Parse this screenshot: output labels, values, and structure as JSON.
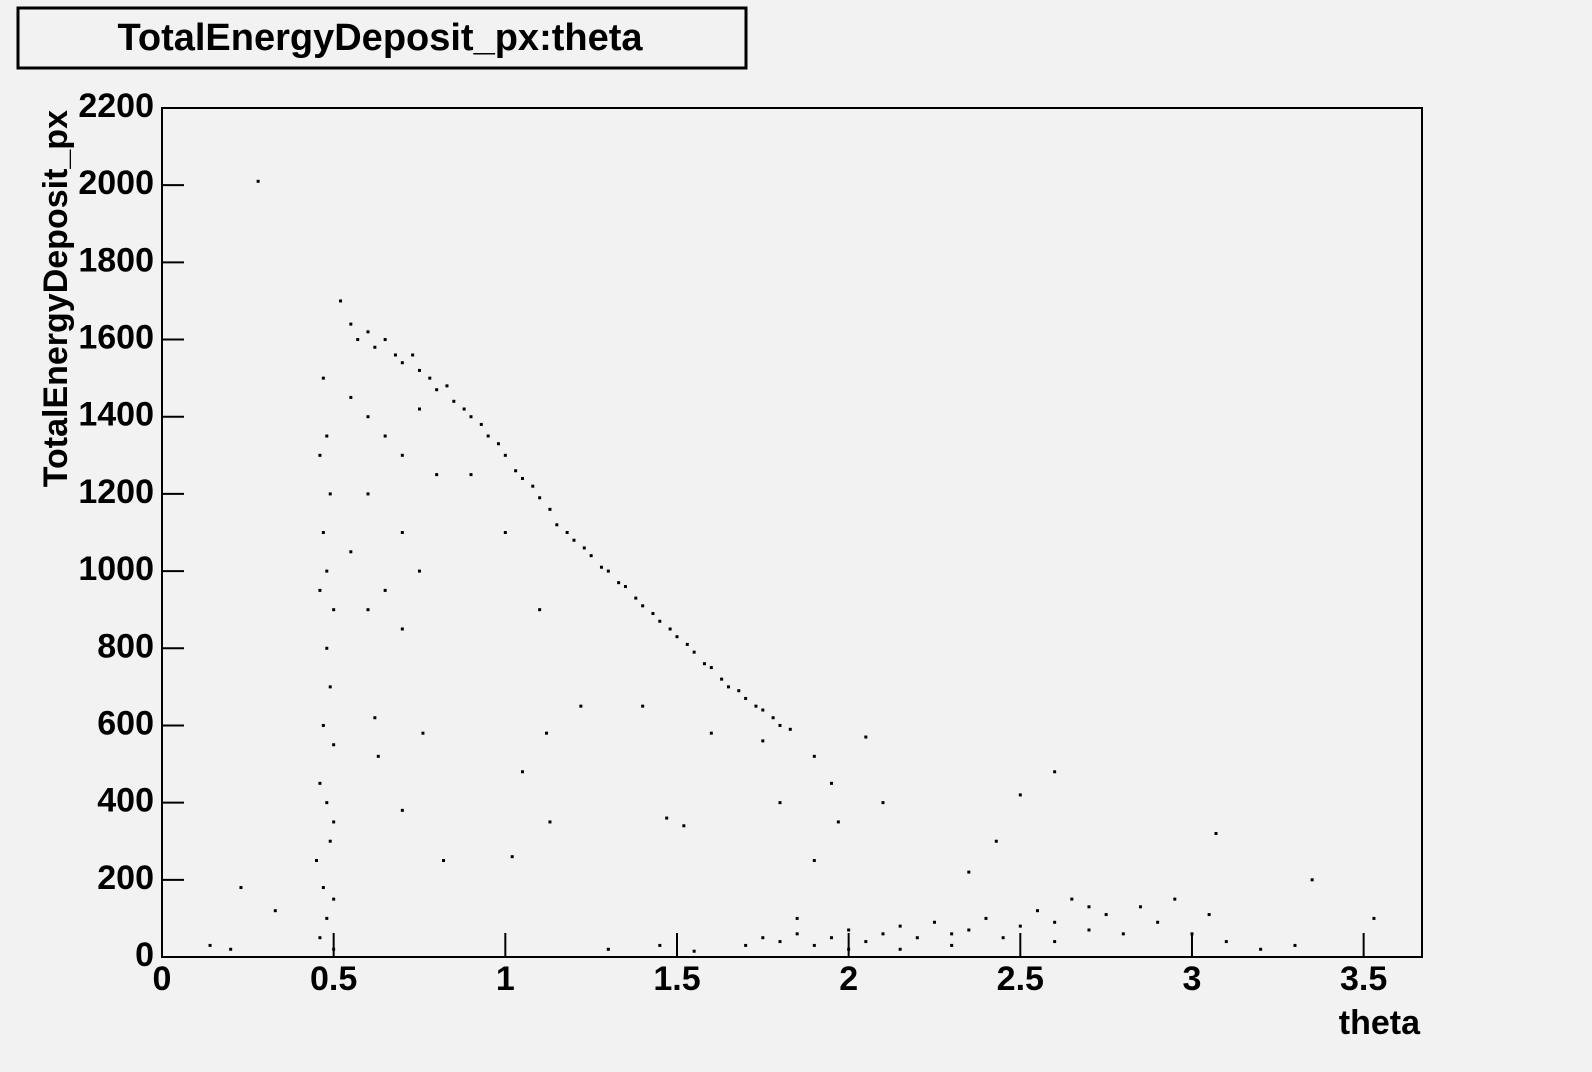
{
  "chart_data": {
    "type": "scatter",
    "title": "TotalEnergyDeposit_px:theta",
    "x_label": "theta",
    "y_label": "TotalEnergyDeposit_px",
    "color": "#000000",
    "xlim": [
      0,
      3.67
    ],
    "ylim": [
      0,
      2200
    ],
    "xticks": [
      0,
      0.5,
      1,
      1.5,
      2,
      2.5,
      3,
      3.5
    ],
    "yticks": [
      0,
      200,
      400,
      600,
      800,
      1000,
      1200,
      1400,
      1600,
      1800,
      2000,
      2200
    ],
    "x": [
      0.52,
      0.55,
      0.57,
      0.6,
      0.62,
      0.65,
      0.68,
      0.7,
      0.73,
      0.75,
      0.78,
      0.8,
      0.83,
      0.85,
      0.88,
      0.9,
      0.93,
      0.95,
      0.98,
      1.0,
      1.03,
      1.05,
      1.08,
      1.1,
      1.13,
      1.15,
      1.18,
      1.2,
      1.23,
      1.25,
      1.28,
      1.3,
      1.33,
      1.35,
      1.38,
      1.4,
      1.43,
      1.45,
      1.48,
      1.5,
      1.53,
      1.55,
      1.58,
      1.6,
      1.63,
      1.65,
      1.68,
      1.7,
      1.73,
      1.75,
      1.78,
      1.8,
      1.83,
      0.55,
      0.6,
      0.65,
      0.7,
      0.75,
      0.8,
      0.6,
      0.7,
      0.55,
      0.65,
      0.75,
      0.9,
      1.0,
      0.6,
      0.7,
      0.47,
      0.48,
      0.46,
      0.49,
      0.47,
      0.48,
      0.46,
      0.5,
      0.48,
      0.49,
      0.47,
      0.5,
      0.46,
      0.48,
      0.5,
      0.49,
      0.45,
      0.47,
      0.5,
      0.48,
      0.46,
      0.5,
      0.28,
      0.23,
      0.33,
      0.14,
      0.2,
      0.62,
      0.63,
      0.7,
      0.76,
      0.82,
      1.02,
      1.05,
      1.1,
      1.12,
      1.13,
      1.22,
      1.4,
      1.47,
      1.52,
      1.6,
      1.75,
      1.8,
      1.9,
      1.95,
      1.97,
      2.05,
      2.1,
      1.9,
      2.43,
      2.5,
      2.6,
      3.07,
      3.35,
      3.53,
      2.35,
      1.3,
      1.45,
      1.55,
      1.7,
      1.75,
      1.8,
      1.85,
      1.9,
      1.95,
      2.0,
      2.05,
      2.1,
      2.15,
      2.2,
      2.25,
      2.3,
      2.35,
      2.4,
      2.45,
      2.5,
      2.55,
      2.6,
      2.65,
      2.7,
      2.75,
      2.8,
      2.85,
      2.9,
      2.95,
      3.0,
      3.05,
      3.1,
      3.2,
      3.3,
      1.85,
      2.0,
      2.3,
      2.6,
      2.7,
      2.15
    ],
    "values": [
      1700,
      1640,
      1600,
      1620,
      1580,
      1600,
      1560,
      1540,
      1560,
      1520,
      1500,
      1470,
      1480,
      1440,
      1420,
      1400,
      1380,
      1350,
      1330,
      1300,
      1260,
      1240,
      1220,
      1190,
      1160,
      1120,
      1100,
      1080,
      1060,
      1040,
      1010,
      1000,
      970,
      960,
      930,
      910,
      890,
      870,
      850,
      830,
      810,
      790,
      760,
      750,
      720,
      700,
      690,
      670,
      650,
      640,
      620,
      600,
      590,
      1450,
      1400,
      1350,
      1300,
      1420,
      1250,
      1200,
      1100,
      1050,
      950,
      1000,
      1250,
      1100,
      900,
      850,
      1500,
      1350,
      1300,
      1200,
      1100,
      1000,
      950,
      900,
      800,
      700,
      600,
      550,
      450,
      400,
      350,
      300,
      250,
      180,
      150,
      100,
      50,
      20,
      2010,
      180,
      120,
      30,
      20,
      620,
      520,
      380,
      580,
      250,
      260,
      480,
      900,
      580,
      350,
      650,
      650,
      360,
      340,
      580,
      560,
      400,
      520,
      450,
      350,
      570,
      400,
      250,
      300,
      420,
      480,
      320,
      200,
      100,
      220,
      20,
      30,
      15,
      30,
      50,
      40,
      60,
      30,
      50,
      70,
      40,
      60,
      80,
      50,
      90,
      60,
      70,
      100,
      50,
      80,
      120,
      90,
      150,
      70,
      110,
      60,
      130,
      90,
      150,
      60,
      110,
      40,
      20,
      30,
      100,
      20,
      30,
      40,
      130,
      20
    ]
  }
}
